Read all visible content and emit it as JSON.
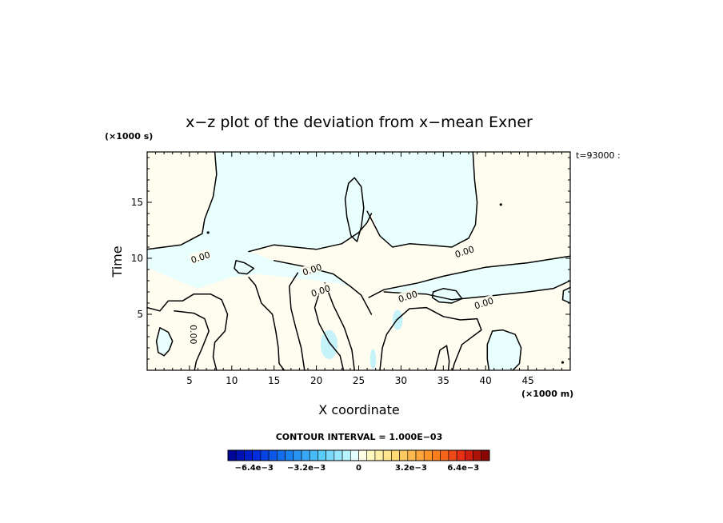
{
  "chart_data": {
    "type": "contour",
    "title": "x−z plot of the deviation from x−mean Exner",
    "xlabel": "X coordinate",
    "ylabel": "Time",
    "x_unit": "(×1000 m)",
    "y_unit": "(×1000 s)",
    "time_label": "t=93000 :",
    "xlim": [
      0,
      50
    ],
    "ylim": [
      0,
      19.5
    ],
    "xticks": [
      5,
      10,
      15,
      20,
      25,
      30,
      35,
      40,
      45
    ],
    "yticks": [
      5,
      10,
      15
    ],
    "contour_interval_text": "CONTOUR INTERVAL = 1.000E−03",
    "contour_label": "0.00",
    "contour_label_positions": [
      {
        "x": 5.5,
        "y": 3.2
      },
      {
        "x": 6.3,
        "y": 10.1
      },
      {
        "x": 19.5,
        "y": 9.0
      },
      {
        "x": 20.5,
        "y": 7.1
      },
      {
        "x": 30.8,
        "y": 6.6
      },
      {
        "x": 37.5,
        "y": 10.6
      },
      {
        "x": 39.8,
        "y": 6.0
      }
    ],
    "colorbar": {
      "min": -0.008,
      "max": 0.008,
      "levels": 32,
      "tick_labels": [
        "−6.4e−3",
        "−3.2e−3",
        "0",
        "3.2e−3",
        "6.4e−3"
      ],
      "tick_values": [
        -0.0064,
        -0.0032,
        0,
        0.0032,
        0.0064
      ]
    },
    "colors": {
      "negative_fill": "#e8fffe",
      "positive_fill": "#fffdf0",
      "weak_negative_fill": "#c6f2fa",
      "contour_line": "#000000"
    },
    "regions": [
      {
        "sign": "neg",
        "pts": [
          [
            0.5,
            19.5
          ],
          [
            8,
            19.5
          ],
          [
            8.2,
            17.5
          ],
          [
            7.8,
            15.5
          ],
          [
            6.8,
            13.5
          ],
          [
            6.5,
            12.2
          ],
          [
            4,
            11.2
          ],
          [
            0,
            10.8
          ],
          [
            0,
            9.2
          ],
          [
            3,
            8.2
          ],
          [
            6,
            7.3
          ],
          [
            10,
            8.3
          ],
          [
            13,
            8.6
          ],
          [
            18,
            8.2
          ],
          [
            22,
            7.8
          ],
          [
            24,
            7.5
          ],
          [
            22,
            8.6
          ],
          [
            19,
            9.2
          ],
          [
            15,
            9.8
          ],
          [
            12,
            10.6
          ],
          [
            15,
            11.2
          ],
          [
            20,
            10.8
          ],
          [
            23,
            11.3
          ],
          [
            25,
            12.3
          ],
          [
            26,
            13.2
          ],
          [
            26.5,
            14
          ],
          [
            27.5,
            12
          ],
          [
            29,
            11
          ],
          [
            31,
            11.3
          ],
          [
            33,
            11.2
          ],
          [
            36,
            11
          ],
          [
            38,
            11.8
          ],
          [
            38.8,
            13
          ],
          [
            39,
            15
          ],
          [
            38.7,
            17
          ],
          [
            38.5,
            19.5
          ]
        ]
      },
      {
        "sign": "neg",
        "pts": [
          [
            28,
            7.2
          ],
          [
            32,
            7.8
          ],
          [
            35,
            8.4
          ],
          [
            40,
            9.2
          ],
          [
            45,
            9.6
          ],
          [
            50,
            10.2
          ],
          [
            50,
            8
          ],
          [
            48,
            7.3
          ],
          [
            45,
            7
          ],
          [
            40,
            6.6
          ],
          [
            36,
            6.3
          ],
          [
            33,
            6.8
          ],
          [
            30,
            6.9
          ]
        ]
      },
      {
        "sign": "neg",
        "pts": [
          [
            1.5,
            3.8
          ],
          [
            2.5,
            3.4
          ],
          [
            3,
            2.6
          ],
          [
            2.6,
            1.8
          ],
          [
            2,
            1.3
          ],
          [
            1.3,
            1.6
          ],
          [
            1.1,
            2.6
          ]
        ]
      },
      {
        "sign": "neg",
        "pts": [
          [
            40.8,
            3.5
          ],
          [
            42,
            3.6
          ],
          [
            43.5,
            3.2
          ],
          [
            44.2,
            2
          ],
          [
            44,
            0.6
          ],
          [
            43.2,
            0
          ],
          [
            40.4,
            0
          ],
          [
            40.2,
            1
          ],
          [
            40.2,
            2.3
          ]
        ]
      },
      {
        "sign": "neg",
        "pts": [
          [
            23.8,
            16.7
          ],
          [
            24.5,
            17.2
          ],
          [
            25.3,
            16.4
          ],
          [
            25.6,
            14.5
          ],
          [
            25.3,
            12.8
          ],
          [
            24.8,
            11.5
          ],
          [
            24.1,
            12
          ],
          [
            23.6,
            13.7
          ],
          [
            23.4,
            15.3
          ]
        ]
      },
      {
        "sign": "neg",
        "pts": [
          [
            10.5,
            9.8
          ],
          [
            11.5,
            9.6
          ],
          [
            12.6,
            9.1
          ],
          [
            11.8,
            8.6
          ],
          [
            10.8,
            8.7
          ],
          [
            10.3,
            9.1
          ]
        ]
      },
      {
        "sign": "neg",
        "pts": [
          [
            33.8,
            7
          ],
          [
            35,
            7.3
          ],
          [
            36.5,
            7.1
          ],
          [
            37.2,
            6.4
          ],
          [
            36,
            6
          ],
          [
            34.5,
            6.1
          ],
          [
            33.7,
            6.5
          ]
        ]
      },
      {
        "sign": "neg",
        "pts": [
          [
            49.2,
            7.1
          ],
          [
            50,
            7.4
          ],
          [
            50,
            6
          ],
          [
            49.1,
            6.3
          ]
        ]
      }
    ],
    "contours": [
      [
        [
          8,
          19.5
        ],
        [
          8.2,
          17.5
        ],
        [
          7.8,
          15.5
        ],
        [
          6.8,
          13.5
        ],
        [
          6.5,
          12.2
        ],
        [
          4,
          11.2
        ],
        [
          0,
          10.8
        ]
      ],
      [
        [
          0,
          5.6
        ],
        [
          1.5,
          5.3
        ],
        [
          2.5,
          6.2
        ],
        [
          4.2,
          6.2
        ],
        [
          5.5,
          6.8
        ],
        [
          7.5,
          6.8
        ],
        [
          8.8,
          6.3
        ],
        [
          9.5,
          5
        ],
        [
          9.2,
          3.5
        ],
        [
          8,
          2.5
        ],
        [
          7.8,
          1.2
        ],
        [
          8.2,
          0
        ]
      ],
      [
        [
          3.2,
          5.3
        ],
        [
          5.5,
          5.1
        ],
        [
          6.8,
          4.6
        ],
        [
          7.3,
          3.5
        ],
        [
          6.5,
          2
        ],
        [
          5.8,
          0.8
        ],
        [
          5.6,
          0
        ]
      ],
      [
        [
          1.5,
          3.8
        ],
        [
          2.5,
          3.4
        ],
        [
          3,
          2.6
        ],
        [
          2.6,
          1.8
        ],
        [
          2,
          1.3
        ],
        [
          1.3,
          1.6
        ],
        [
          1.1,
          2.6
        ],
        [
          1.5,
          3.8
        ]
      ],
      [
        [
          10.5,
          9.8
        ],
        [
          11.5,
          9.6
        ],
        [
          12.6,
          9.1
        ],
        [
          11.8,
          8.6
        ],
        [
          10.8,
          8.7
        ],
        [
          10.3,
          9.1
        ],
        [
          10.5,
          9.8
        ]
      ],
      [
        [
          12,
          8.3
        ],
        [
          12.8,
          7.6
        ],
        [
          13.5,
          6
        ],
        [
          14.8,
          5
        ],
        [
          15.2,
          3.5
        ],
        [
          15.5,
          2
        ],
        [
          15.6,
          0.6
        ],
        [
          16.2,
          0
        ]
      ],
      [
        [
          17.8,
          8.7
        ],
        [
          16.8,
          7.5
        ],
        [
          17,
          5.5
        ],
        [
          17.5,
          4
        ],
        [
          18.2,
          2
        ],
        [
          18.6,
          0
        ]
      ],
      [
        [
          21,
          7.8
        ],
        [
          22,
          5.8
        ],
        [
          23.3,
          3.8
        ],
        [
          24.2,
          1.8
        ],
        [
          24.5,
          0
        ]
      ],
      [
        [
          20.5,
          7.3
        ],
        [
          19.8,
          5.6
        ],
        [
          20.3,
          4.2
        ],
        [
          21.5,
          2.5
        ],
        [
          22.8,
          1.3
        ],
        [
          23.2,
          0
        ]
      ],
      [
        [
          15,
          9.8
        ],
        [
          19,
          9.2
        ],
        [
          22,
          8.6
        ],
        [
          24,
          7.5
        ],
        [
          25.3,
          6.7
        ],
        [
          26.5,
          5
        ]
      ],
      [
        [
          12,
          10.6
        ],
        [
          15,
          11.2
        ],
        [
          20,
          10.8
        ],
        [
          23,
          11.3
        ],
        [
          25,
          12.3
        ],
        [
          26,
          13.2
        ],
        [
          26.5,
          14
        ]
      ],
      [
        [
          23.8,
          16.7
        ],
        [
          24.5,
          17.2
        ],
        [
          25.3,
          16.4
        ],
        [
          25.6,
          14.5
        ],
        [
          25.3,
          12.8
        ],
        [
          24.8,
          11.5
        ],
        [
          24.1,
          12
        ],
        [
          23.6,
          13.7
        ],
        [
          23.4,
          15.3
        ],
        [
          23.8,
          16.7
        ]
      ],
      [
        [
          26,
          14.2
        ],
        [
          27.5,
          12
        ],
        [
          29,
          11
        ],
        [
          31,
          11.3
        ],
        [
          33,
          11.2
        ],
        [
          36,
          11
        ],
        [
          38,
          11.8
        ],
        [
          38.8,
          13
        ],
        [
          39,
          15
        ],
        [
          38.7,
          17
        ],
        [
          38.5,
          19.5
        ]
      ],
      [
        [
          50,
          10.2
        ],
        [
          45,
          9.6
        ],
        [
          40,
          9.2
        ],
        [
          35,
          8.4
        ],
        [
          32,
          7.8
        ],
        [
          28,
          7.2
        ],
        [
          26.2,
          6.5
        ]
      ],
      [
        [
          28,
          7
        ],
        [
          30,
          6.9
        ],
        [
          33,
          6.8
        ],
        [
          36,
          6.3
        ],
        [
          40,
          6.6
        ],
        [
          45,
          7
        ],
        [
          48,
          7.3
        ],
        [
          50,
          8
        ]
      ],
      [
        [
          33.8,
          7
        ],
        [
          35,
          7.3
        ],
        [
          36.5,
          7.1
        ],
        [
          37.2,
          6.4
        ],
        [
          36,
          6
        ],
        [
          34.5,
          6.1
        ],
        [
          33.7,
          6.5
        ],
        [
          33.8,
          7
        ]
      ],
      [
        [
          29.5,
          4.5
        ],
        [
          31,
          5.5
        ],
        [
          33,
          5.6
        ],
        [
          35,
          4.8
        ],
        [
          37,
          4.5
        ],
        [
          39,
          4.6
        ],
        [
          39.5,
          3.6
        ],
        [
          37.2,
          2.3
        ],
        [
          36.3,
          0.6
        ],
        [
          36.1,
          0
        ]
      ],
      [
        [
          29.5,
          4.5
        ],
        [
          28.3,
          3.2
        ],
        [
          27.8,
          2
        ],
        [
          27.5,
          0
        ]
      ],
      [
        [
          34,
          0
        ],
        [
          34.6,
          1.8
        ],
        [
          35.4,
          2.2
        ],
        [
          35.7,
          0.8
        ],
        [
          35.6,
          0
        ]
      ],
      [
        [
          40.8,
          3.5
        ],
        [
          42,
          3.6
        ],
        [
          43.5,
          3.2
        ],
        [
          44.2,
          2
        ],
        [
          44,
          0.6
        ],
        [
          43.2,
          0
        ]
      ],
      [
        [
          40.8,
          3.5
        ],
        [
          40.2,
          2.3
        ],
        [
          40.2,
          1
        ],
        [
          40.4,
          0
        ]
      ],
      [
        [
          49.2,
          7.1
        ],
        [
          50,
          7.4
        ]
      ],
      [
        [
          49.2,
          7.1
        ],
        [
          49.1,
          6.3
        ],
        [
          50,
          6
        ]
      ]
    ],
    "blobs": [
      {
        "x": 21.5,
        "y": 2.3,
        "rx": 1.0,
        "ry": 1.3
      },
      {
        "x": 29.6,
        "y": 4.5,
        "rx": 0.6,
        "ry": 0.9
      },
      {
        "x": 26.7,
        "y": 1.0,
        "rx": 0.35,
        "ry": 0.9
      }
    ],
    "dots": [
      {
        "x": 41.8,
        "y": 14.8
      },
      {
        "x": 49.1,
        "y": 0.7
      },
      {
        "x": 7.2,
        "y": 12.3
      }
    ]
  }
}
